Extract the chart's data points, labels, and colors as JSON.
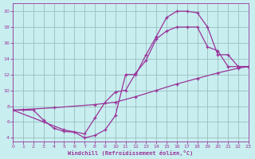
{
  "xlabel": "Windchill (Refroidissement éolien,°C)",
  "xlim": [
    0,
    23
  ],
  "ylim": [
    3.5,
    21
  ],
  "xticks": [
    0,
    1,
    2,
    3,
    4,
    5,
    6,
    7,
    8,
    9,
    10,
    11,
    12,
    13,
    14,
    15,
    16,
    17,
    18,
    19,
    20,
    21,
    22,
    23
  ],
  "yticks": [
    4,
    6,
    8,
    10,
    12,
    14,
    16,
    18,
    20
  ],
  "bg_color": "#c8eef0",
  "line_color": "#993399",
  "grid_color": "#9bbfbf",
  "line1_x": [
    0,
    1,
    2,
    3,
    4,
    5,
    6,
    7,
    8,
    9,
    10,
    11,
    12,
    13,
    14,
    15,
    16,
    17,
    18,
    19,
    20,
    21,
    22,
    23
  ],
  "line1_y": [
    7.5,
    7.5,
    7.5,
    6.2,
    5.2,
    4.8,
    4.7,
    4.0,
    4.3,
    5.0,
    6.8,
    12.0,
    12.0,
    14.5,
    16.8,
    19.2,
    20.0,
    20.0,
    19.8,
    18.0,
    14.5,
    14.5,
    13.0,
    13.0
  ],
  "line2_x": [
    0,
    3,
    5,
    7,
    8,
    9,
    10,
    11,
    12,
    13,
    14,
    15,
    16,
    17,
    18,
    19,
    20,
    21,
    22,
    23
  ],
  "line2_y": [
    7.5,
    6.0,
    5.0,
    4.5,
    6.5,
    8.5,
    9.8,
    10.0,
    12.2,
    13.8,
    16.5,
    17.5,
    18.0,
    18.0,
    18.0,
    15.5,
    15.0,
    13.0,
    13.0,
    13.0
  ],
  "line3_x": [
    0,
    4,
    8,
    10,
    12,
    14,
    16,
    18,
    20,
    22,
    23
  ],
  "line3_y": [
    7.5,
    7.8,
    8.2,
    8.5,
    9.2,
    10.0,
    10.8,
    11.5,
    12.2,
    12.8,
    13.0
  ]
}
